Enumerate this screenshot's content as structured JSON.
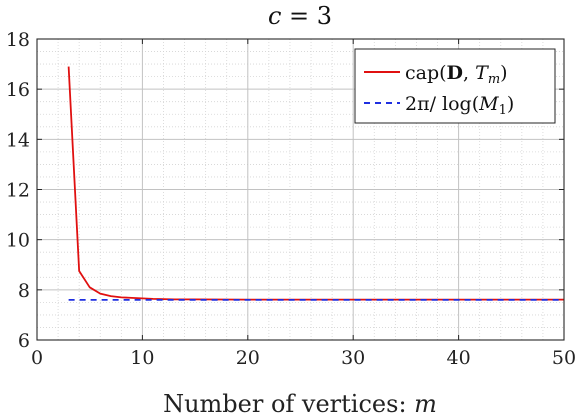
{
  "chart_data": {
    "type": "line",
    "title": "c = 3",
    "xlabel": "Number of vertices: m",
    "ylabel": "",
    "xlim": [
      0,
      50
    ],
    "ylim": [
      6,
      18
    ],
    "xticks": [
      0,
      10,
      20,
      30,
      40,
      50
    ],
    "yticks": [
      6,
      8,
      10,
      12,
      14,
      16,
      18
    ],
    "grid": true,
    "minor_grid": true,
    "legend_position": "top-right",
    "series": [
      {
        "name": "cap(D, T_m)",
        "color": "#e01010",
        "style": "solid",
        "x": [
          3,
          4,
          5,
          6,
          7,
          8,
          9,
          10,
          11,
          12,
          13,
          14,
          15,
          20,
          25,
          30,
          35,
          40,
          45,
          50
        ],
        "y": [
          16.9,
          8.75,
          8.1,
          7.85,
          7.75,
          7.7,
          7.68,
          7.66,
          7.64,
          7.63,
          7.62,
          7.62,
          7.62,
          7.61,
          7.61,
          7.61,
          7.61,
          7.61,
          7.61,
          7.61
        ]
      },
      {
        "name": "2π/log(M_1)",
        "color": "#1f2fe0",
        "style": "dashed",
        "x": [
          3,
          50
        ],
        "y": [
          7.6,
          7.6
        ]
      }
    ]
  }
}
